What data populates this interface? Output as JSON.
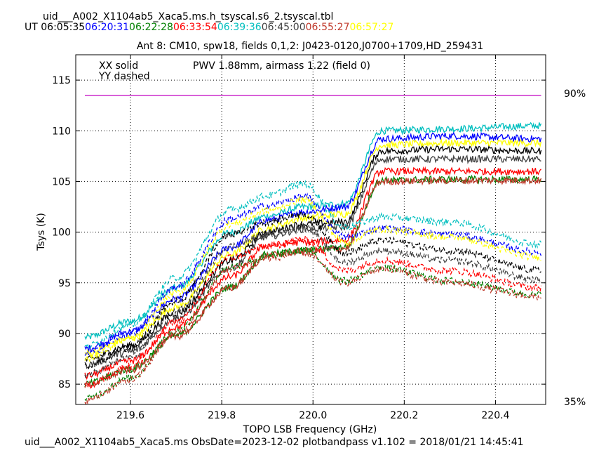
{
  "header": {
    "filename": "uid___A002_X1104ab5_Xaca5.ms.h_tsyscal.s6_2.tsyscal.tbl",
    "ut_prefix": "UT",
    "times": [
      {
        "text": "06:05:35",
        "color": "#000000"
      },
      {
        "text": "06:20:31",
        "color": "#0000ff"
      },
      {
        "text": "06:22:28",
        "color": "#008000"
      },
      {
        "text": "06:33:54",
        "color": "#ff0000"
      },
      {
        "text": "06:39:36",
        "color": "#00bfbf"
      },
      {
        "text": "06:45:00",
        "color": "#404040"
      },
      {
        "text": "06:55:27",
        "color": "#c0392b"
      },
      {
        "text": "06:57:27",
        "color": "#ffff00"
      }
    ]
  },
  "footer": {
    "text": "uid___A002_X1104ab5_Xaca5.ms  ObsDate=2023-12-02   plotbandpass v1.102 = 2018/01/21 14:45:41"
  },
  "chart_data": {
    "type": "line",
    "title": "Ant 8: CM10,  spw18,  fields 0,1,2: J0423-0120,J0700+1709,HD_259431",
    "xlabel": "TOPO LSB Frequency (GHz)",
    "ylabel": "Tsys (K)",
    "xlim": [
      219.48,
      220.51
    ],
    "ylim": [
      83.0,
      117.5
    ],
    "xticks": [
      219.6,
      219.8,
      220.0,
      220.2,
      220.4
    ],
    "yticks": [
      85,
      90,
      95,
      100,
      105,
      110,
      115
    ],
    "grid": true,
    "legend_text": [
      "XX solid",
      "YY dashed"
    ],
    "annotation": {
      "text": "PWV 1.88mm, airmass 1.22 (field 0)",
      "color": "#c000c0"
    },
    "transmission": {
      "color": "#c000c0",
      "right_labels": [
        "90%",
        "35%"
      ],
      "value_K": 113.5,
      "x_range": [
        219.5,
        220.5
      ]
    },
    "series": [
      {
        "color": "#00bfbf",
        "pol": "XX",
        "values": [
          89.6,
          91.2,
          94.5,
          100.0,
          101.6,
          102.5,
          102.8,
          110.0,
          110.2,
          110.5
        ]
      },
      {
        "color": "#0000ff",
        "pol": "XX",
        "values": [
          88.5,
          90.2,
          93.4,
          98.5,
          101.2,
          102.0,
          102.5,
          109.2,
          109.5,
          109.2
        ]
      },
      {
        "color": "#ffff00",
        "pol": "XX",
        "values": [
          88.0,
          89.5,
          92.6,
          97.8,
          100.4,
          101.4,
          101.8,
          108.6,
          108.8,
          108.8
        ]
      },
      {
        "color": "#000000",
        "pol": "XX",
        "values": [
          87.4,
          88.8,
          92.0,
          97.2,
          100.0,
          100.8,
          101.0,
          108.0,
          108.2,
          108.0
        ]
      },
      {
        "color": "#404040",
        "pol": "XX",
        "values": [
          86.9,
          88.2,
          91.5,
          96.5,
          99.6,
          100.3,
          100.5,
          107.2,
          107.2,
          107.2
        ]
      },
      {
        "color": "#ff0000",
        "pol": "XX",
        "values": [
          85.8,
          87.3,
          90.6,
          95.6,
          98.7,
          99.0,
          99.2,
          106.0,
          106.0,
          106.0
        ]
      },
      {
        "color": "#008000",
        "pol": "XX",
        "values": [
          85.0,
          86.5,
          89.8,
          94.6,
          97.8,
          98.2,
          98.5,
          105.1,
          105.2,
          105.2
        ]
      },
      {
        "color": "#c0392b",
        "pol": "XX",
        "values": [
          84.9,
          86.4,
          89.7,
          94.5,
          97.7,
          98.1,
          98.4,
          105.0,
          105.1,
          105.1
        ]
      },
      {
        "color": "#00bfbf",
        "pol": "YY",
        "values": [
          88.7,
          90.8,
          95.5,
          102.2,
          103.6,
          104.8,
          100.5,
          101.5,
          101.0,
          98.8
        ]
      },
      {
        "color": "#0000ff",
        "pol": "YY",
        "values": [
          88.0,
          90.0,
          94.6,
          101.3,
          102.6,
          103.5,
          99.5,
          100.4,
          99.8,
          98.0
        ]
      },
      {
        "color": "#ffff00",
        "pol": "YY",
        "values": [
          87.5,
          89.5,
          94.0,
          100.8,
          102.1,
          103.2,
          99.0,
          100.3,
          99.5,
          97.5
        ]
      },
      {
        "color": "#000000",
        "pol": "YY",
        "values": [
          86.8,
          88.6,
          93.2,
          99.8,
          101.0,
          101.8,
          98.0,
          99.2,
          98.2,
          96.2
        ]
      },
      {
        "color": "#404040",
        "pol": "YY",
        "values": [
          85.9,
          87.7,
          92.2,
          98.6,
          99.8,
          100.6,
          97.0,
          98.2,
          97.2,
          95.3
        ]
      },
      {
        "color": "#ff0000",
        "pol": "YY",
        "values": [
          84.8,
          86.8,
          91.2,
          97.5,
          98.6,
          99.3,
          96.2,
          97.2,
          96.2,
          94.5
        ]
      },
      {
        "color": "#008000",
        "pol": "YY",
        "values": [
          83.6,
          85.6,
          90.2,
          96.6,
          97.6,
          98.2,
          95.2,
          96.5,
          95.2,
          93.8
        ]
      },
      {
        "color": "#c0392b",
        "pol": "YY",
        "values": [
          83.4,
          85.4,
          90.0,
          96.4,
          97.4,
          98.0,
          95.0,
          96.4,
          95.0,
          93.6
        ]
      }
    ],
    "x_knots": [
      219.5,
      219.6,
      219.7,
      219.82,
      219.9,
      219.98,
      220.07,
      220.15,
      220.3,
      220.5
    ]
  }
}
